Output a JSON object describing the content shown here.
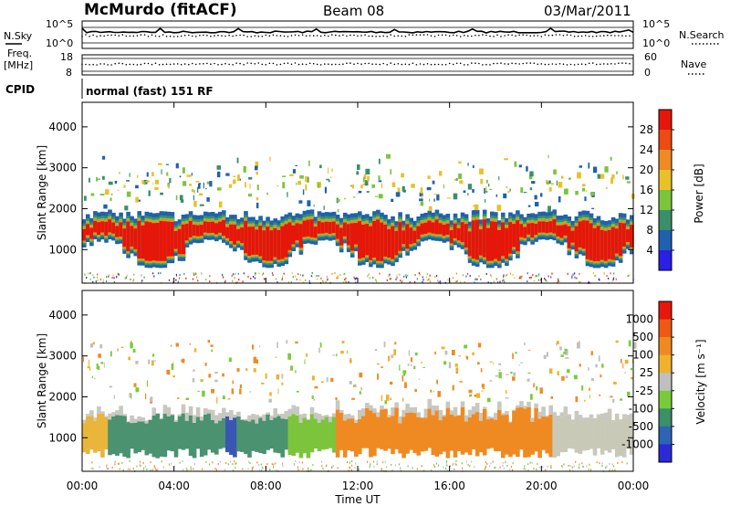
{
  "header": {
    "station": "McMurdo (fitACF)",
    "beam": "Beam 08",
    "date": "03/Mar/2011"
  },
  "small_panels": {
    "nsky_label": "N.Sky",
    "nsearch_label": "N.Search",
    "noise_ticks": [
      "10^5",
      "10^0"
    ],
    "freq_label_line1": "Freq.",
    "freq_label_line2": "[MHz]",
    "freq_ticks": [
      "18",
      "8"
    ],
    "nave_label": "Nave",
    "nave_ticks": [
      "60",
      "0"
    ],
    "cpid_label": "CPID",
    "cpid_text": "normal (fast) 151 RF"
  },
  "chart_data": [
    {
      "type": "heatmap",
      "title": "Power",
      "ylabel": "Slant Range [km]",
      "xlabel": "Time UT",
      "ylim": [
        180,
        4600
      ],
      "xlim": [
        0,
        24
      ],
      "y_ticks": [
        "4000",
        "3000",
        "2000",
        "1000"
      ],
      "colorbar": {
        "label": "Power [dB]",
        "ticks": [
          "28",
          "24",
          "20",
          "16",
          "12",
          "8",
          "4"
        ],
        "colors": [
          "#2a1fe6",
          "#2060b0",
          "#3a8f6a",
          "#7cc43c",
          "#e8c12a",
          "#f08a22",
          "#ee4a12",
          "#e5160a"
        ]
      },
      "main_band": {
        "lower_km": [
          700,
          1400
        ],
        "upper_km": [
          1300,
          1800
        ]
      },
      "secondary_band": {
        "range_km": [
          2600,
          3400
        ]
      }
    },
    {
      "type": "heatmap",
      "title": "Velocity",
      "ylabel": "Slant Range [km]",
      "xlabel": "Time UT",
      "ylim": [
        180,
        4600
      ],
      "xlim": [
        0,
        24
      ],
      "y_ticks": [
        "4000",
        "3000",
        "2000",
        "1000"
      ],
      "colorbar": {
        "label": "Velocity [m s⁻¹]",
        "ticks": [
          "1000",
          "500",
          "100",
          "25",
          "-25",
          "-100",
          "-500",
          "-1000"
        ],
        "colors": [
          "#2a2ad8",
          "#2d64b6",
          "#3c8f68",
          "#78cc38",
          "#bfbfbf",
          "#f0b22a",
          "#ef8a22",
          "#ee5a14",
          "#e8170b"
        ]
      },
      "segments": [
        {
          "t_start": 0,
          "t_end": 1.2,
          "color": "#e9b53a"
        },
        {
          "t_start": 1.2,
          "t_end": 6.2,
          "color": "#4a9270"
        },
        {
          "t_start": 6.2,
          "t_end": 6.8,
          "color": "#3a56b4"
        },
        {
          "t_start": 6.8,
          "t_end": 9.0,
          "color": "#4a9270"
        },
        {
          "t_start": 9.0,
          "t_end": 11.0,
          "color": "#7cc43c"
        },
        {
          "t_start": 11.0,
          "t_end": 20.5,
          "color": "#ef8a22"
        },
        {
          "t_start": 20.5,
          "t_end": 24,
          "color": "#c9c9b8"
        }
      ]
    }
  ],
  "x_ticks": [
    "00:00",
    "04:00",
    "08:00",
    "12:00",
    "16:00",
    "20:00",
    "00:00"
  ],
  "xlabel": "Time UT"
}
